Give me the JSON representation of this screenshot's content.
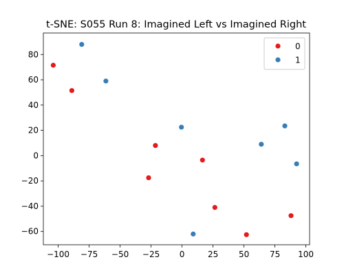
{
  "chart_data": {
    "type": "scatter",
    "title": "t-SNE: S055 Run 8: Imagined Left vs Imagined Right",
    "xlabel": "",
    "ylabel": "",
    "xlim": [
      -112,
      103
    ],
    "ylim": [
      -70.5,
      97
    ],
    "xticks": [
      -100,
      -75,
      -50,
      -25,
      0,
      25,
      50,
      75,
      100
    ],
    "yticks": [
      -60,
      -40,
      -20,
      0,
      20,
      40,
      60,
      80
    ],
    "grid": false,
    "legend_position": "top-right",
    "series": [
      {
        "name": "0",
        "color": "#e41a1c",
        "points": [
          {
            "x": -104,
            "y": 71.5
          },
          {
            "x": -89,
            "y": 51.5
          },
          {
            "x": -21.5,
            "y": 8
          },
          {
            "x": -27,
            "y": -17.5
          },
          {
            "x": 16.5,
            "y": -3.5
          },
          {
            "x": 26.5,
            "y": -41
          },
          {
            "x": 52,
            "y": -62.5
          },
          {
            "x": 88,
            "y": -47.5
          }
        ]
      },
      {
        "name": "1",
        "color": "#377eb8",
        "points": [
          {
            "x": -81,
            "y": 88
          },
          {
            "x": -61.5,
            "y": 59
          },
          {
            "x": -0.5,
            "y": 22.5
          },
          {
            "x": 9,
            "y": -62
          },
          {
            "x": 64,
            "y": 9
          },
          {
            "x": 83,
            "y": 23.5
          },
          {
            "x": 92.5,
            "y": -6.5
          }
        ]
      }
    ]
  }
}
